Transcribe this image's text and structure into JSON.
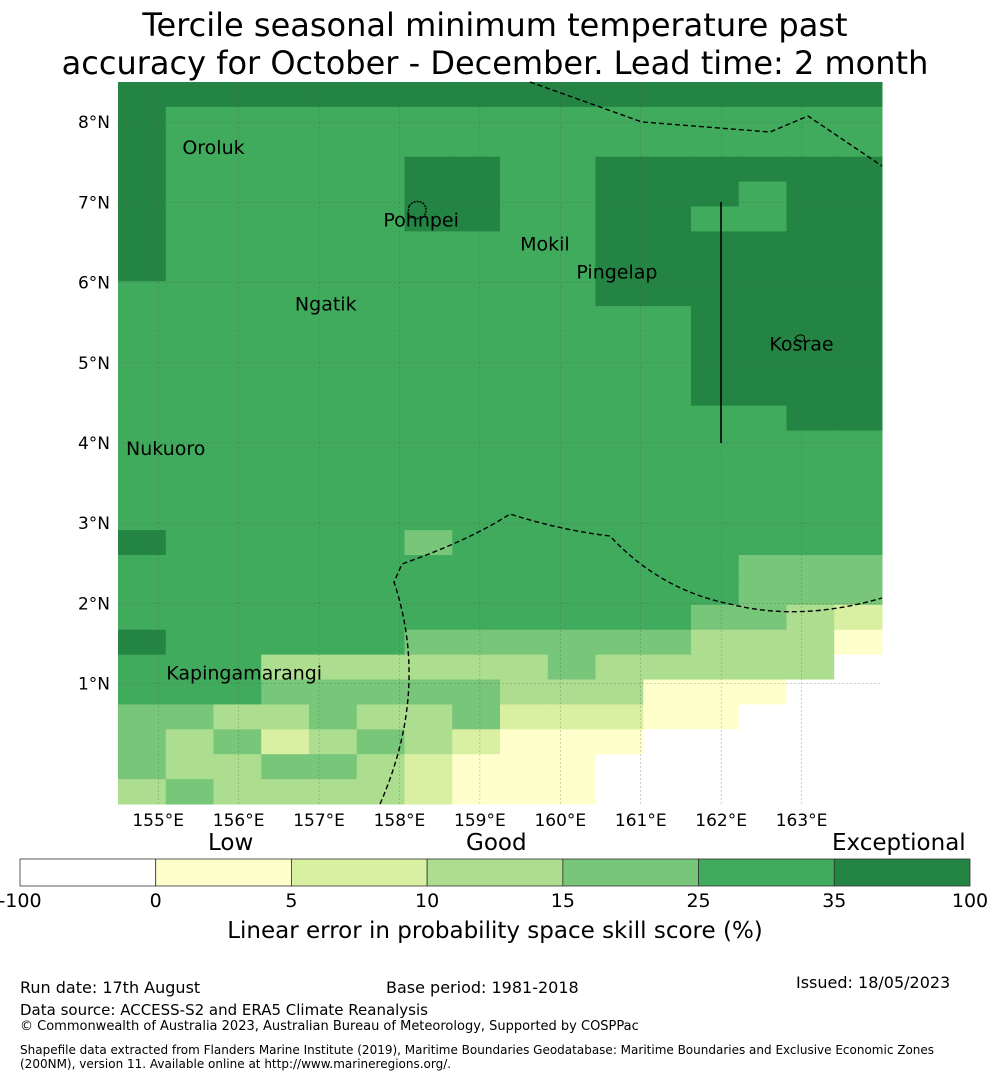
{
  "title_line1": "Tercile seasonal minimum temperature past",
  "title_line2": "accuracy for October - December. Lead time: 2 month",
  "map": {
    "lon_min": 154.5,
    "lon_max": 164.0,
    "lat_min": -0.5,
    "lat_max": 8.5,
    "lon_ticks": [
      155,
      156,
      157,
      158,
      159,
      160,
      161,
      162,
      163
    ],
    "lon_tick_labels": [
      "155°E",
      "156°E",
      "157°E",
      "158°E",
      "159°E",
      "160°E",
      "161°E",
      "162°E",
      "163°E"
    ],
    "lat_ticks": [
      1,
      2,
      3,
      4,
      5,
      6,
      7,
      8
    ],
    "lat_tick_labels": [
      "1°N",
      "2°N",
      "3°N",
      "4°N",
      "5°N",
      "6°N",
      "7°N",
      "8°N"
    ],
    "places": [
      {
        "name": "Oroluk",
        "lon": 155.3,
        "lat": 7.6
      },
      {
        "name": "Pohnpei",
        "lon": 157.8,
        "lat": 6.7
      },
      {
        "name": "Mokil",
        "lon": 159.5,
        "lat": 6.4
      },
      {
        "name": "Pingelap",
        "lon": 160.2,
        "lat": 6.05
      },
      {
        "name": "Ngatik",
        "lon": 156.7,
        "lat": 5.65
      },
      {
        "name": "Kosrae",
        "lon": 162.6,
        "lat": 5.15
      },
      {
        "name": "Nukuoro",
        "lon": 154.6,
        "lat": 3.85
      },
      {
        "name": "Kapingamarangi",
        "lon": 155.1,
        "lat": 1.05
      }
    ]
  },
  "colorbar": {
    "categories": [
      "Low",
      "Good",
      "Exceptional"
    ],
    "ticks": [
      "-100",
      "0",
      "5",
      "10",
      "15",
      "25",
      "35",
      "100"
    ],
    "colors": [
      "#ffffff",
      "#ffffcc",
      "#d9f0a3",
      "#addd8e",
      "#78c679",
      "#41ab5d",
      "#238443"
    ],
    "label": "Linear error in probability space skill score (%)"
  },
  "footer": {
    "run_date": "Run date: 17th August",
    "base_period": "Base period: 1981-2018",
    "issued": "Issued: 18/05/2023",
    "data_source": "Data source: ACCESS-S2 and ERA5 Climate Reanalysis",
    "copyright": "© Commonwealth of Australia 2023, Australian Bureau of Meteorology, Supported by COSPPac",
    "shapefile_line1": "Shapefile data extracted from Flanders Marine Institute (2019), Maritime Boundaries Geodatabase: Maritime Boundaries and Exclusive Economic Zones",
    "shapefile_line2": "(200NM), version 11. Available online at http://www.marineregions.org/."
  },
  "grid_cells": [
    "6666666666666666",
    "6555555555555555",
    "6555555555555555",
    "6555556655666666",
    "6555556655666566",
    "6555556655665566",
    "6555555555666666",
    "6555555555666666",
    "5555555555666666",
    "5555555555556666",
    "5555555555556666",
    "5555555555556666",
    "5555555555556666",
    "5555555555555566",
    "5555555555555555",
    "5555555555555555",
    "5555555555555555",
    "5555555555555555",
    "6555554555555555",
    "5555555555555444",
    "5555555555555444",
    "5555555555554432",
    "6555554444443331",
    "5553333334333330",
    "5554444433311100",
    "4433433422211000",
    "4342343211100000",
    "4334432111000000",
    "3433332111000000"
  ]
}
